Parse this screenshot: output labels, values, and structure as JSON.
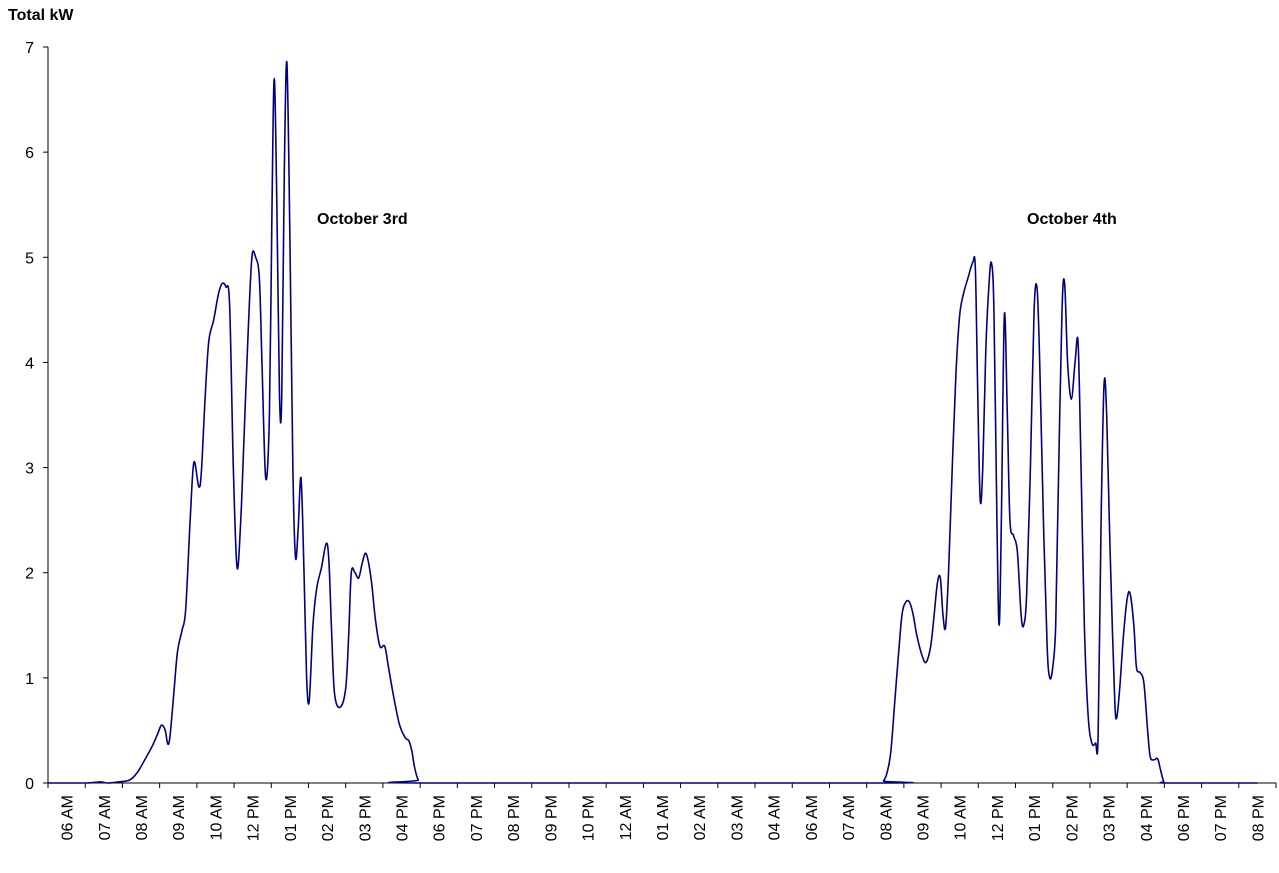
{
  "chart_data": {
    "type": "line",
    "ylabel": "Total kW",
    "xlabel": "",
    "title": "",
    "ylim": [
      0,
      7
    ],
    "yticks": [
      0,
      1,
      2,
      3,
      4,
      5,
      6,
      7
    ],
    "grid": false,
    "x_tick_labels": [
      "06 AM",
      "07 AM",
      "08 AM",
      "09 AM",
      "10 AM",
      "12 PM",
      "01 PM",
      "02 PM",
      "03 PM",
      "04 PM",
      "06 PM",
      "07 PM",
      "08 PM",
      "09 PM",
      "10 PM",
      "12 AM",
      "01 AM",
      "02 AM",
      "03 AM",
      "04 AM",
      "06 AM",
      "07 AM",
      "08 AM",
      "09 AM",
      "10 AM",
      "12 PM",
      "01 PM",
      "02 PM",
      "03 PM",
      "04 PM",
      "06 PM",
      "07 PM",
      "08 PM"
    ],
    "annotations": [
      {
        "text": "October 3rd"
      },
      {
        "text": "October 4th"
      }
    ],
    "series": [
      {
        "color": "#000080",
        "points": [
          [
            0,
            0
          ],
          [
            1.0,
            0
          ],
          [
            1.4,
            0.01
          ],
          [
            1.6,
            0
          ],
          [
            1.9,
            0.01
          ],
          [
            2.2,
            0.03
          ],
          [
            2.4,
            0.1
          ],
          [
            2.6,
            0.22
          ],
          [
            2.8,
            0.35
          ],
          [
            2.95,
            0.47
          ],
          [
            3.05,
            0.55
          ],
          [
            3.15,
            0.5
          ],
          [
            3.22,
            0.37
          ],
          [
            3.28,
            0.45
          ],
          [
            3.38,
            0.85
          ],
          [
            3.48,
            1.25
          ],
          [
            3.6,
            1.45
          ],
          [
            3.7,
            1.65
          ],
          [
            3.82,
            2.5
          ],
          [
            3.92,
            3.05
          ],
          [
            4.05,
            2.82
          ],
          [
            4.12,
            2.95
          ],
          [
            4.22,
            3.65
          ],
          [
            4.32,
            4.2
          ],
          [
            4.45,
            4.4
          ],
          [
            4.58,
            4.65
          ],
          [
            4.68,
            4.75
          ],
          [
            4.78,
            4.72
          ],
          [
            4.88,
            4.55
          ],
          [
            4.98,
            3.0
          ],
          [
            5.08,
            2.05
          ],
          [
            5.18,
            2.5
          ],
          [
            5.28,
            3.4
          ],
          [
            5.38,
            4.3
          ],
          [
            5.48,
            5.0
          ],
          [
            5.58,
            5.0
          ],
          [
            5.68,
            4.8
          ],
          [
            5.75,
            4.0
          ],
          [
            5.85,
            2.9
          ],
          [
            5.95,
            3.5
          ],
          [
            6.02,
            5.5
          ],
          [
            6.08,
            6.7
          ],
          [
            6.15,
            5.5
          ],
          [
            6.22,
            3.7
          ],
          [
            6.28,
            3.65
          ],
          [
            6.35,
            5.8
          ],
          [
            6.42,
            6.85
          ],
          [
            6.5,
            5.2
          ],
          [
            6.58,
            3.0
          ],
          [
            6.65,
            2.15
          ],
          [
            6.72,
            2.4
          ],
          [
            6.8,
            2.9
          ],
          [
            6.88,
            2.0
          ],
          [
            6.95,
            1.0
          ],
          [
            7.02,
            0.78
          ],
          [
            7.12,
            1.5
          ],
          [
            7.22,
            1.85
          ],
          [
            7.35,
            2.05
          ],
          [
            7.48,
            2.28
          ],
          [
            7.55,
            2.1
          ],
          [
            7.62,
            1.45
          ],
          [
            7.7,
            0.85
          ],
          [
            7.85,
            0.72
          ],
          [
            8.0,
            0.9
          ],
          [
            8.08,
            1.4
          ],
          [
            8.15,
            2.0
          ],
          [
            8.25,
            2.0
          ],
          [
            8.35,
            1.95
          ],
          [
            8.45,
            2.1
          ],
          [
            8.55,
            2.18
          ],
          [
            8.68,
            1.95
          ],
          [
            8.8,
            1.55
          ],
          [
            8.92,
            1.3
          ],
          [
            9.05,
            1.3
          ],
          [
            9.15,
            1.1
          ],
          [
            9.3,
            0.8
          ],
          [
            9.45,
            0.55
          ],
          [
            9.6,
            0.43
          ],
          [
            9.7,
            0.4
          ],
          [
            9.78,
            0.3
          ],
          [
            9.85,
            0.15
          ],
          [
            9.95,
            0.03
          ],
          [
            10.1,
            0
          ],
          [
            22.3,
            0
          ],
          [
            22.45,
            0.02
          ],
          [
            22.55,
            0.1
          ],
          [
            22.65,
            0.3
          ],
          [
            22.75,
            0.75
          ],
          [
            22.85,
            1.2
          ],
          [
            22.95,
            1.6
          ],
          [
            23.05,
            1.72
          ],
          [
            23.15,
            1.72
          ],
          [
            23.25,
            1.6
          ],
          [
            23.35,
            1.4
          ],
          [
            23.5,
            1.2
          ],
          [
            23.6,
            1.15
          ],
          [
            23.72,
            1.3
          ],
          [
            23.8,
            1.55
          ],
          [
            23.9,
            1.9
          ],
          [
            23.98,
            1.95
          ],
          [
            24.05,
            1.6
          ],
          [
            24.12,
            1.48
          ],
          [
            24.2,
            2.0
          ],
          [
            24.3,
            3.0
          ],
          [
            24.4,
            3.9
          ],
          [
            24.5,
            4.45
          ],
          [
            24.6,
            4.65
          ],
          [
            24.72,
            4.8
          ],
          [
            24.85,
            4.95
          ],
          [
            24.92,
            4.9
          ],
          [
            24.98,
            3.8
          ],
          [
            25.05,
            2.7
          ],
          [
            25.12,
            3.0
          ],
          [
            25.2,
            4.1
          ],
          [
            25.28,
            4.7
          ],
          [
            25.35,
            4.95
          ],
          [
            25.42,
            4.5
          ],
          [
            25.5,
            2.5
          ],
          [
            25.56,
            1.5
          ],
          [
            25.62,
            2.5
          ],
          [
            25.7,
            4.45
          ],
          [
            25.78,
            3.5
          ],
          [
            25.85,
            2.5
          ],
          [
            25.95,
            2.35
          ],
          [
            26.05,
            2.2
          ],
          [
            26.15,
            1.6
          ],
          [
            26.22,
            1.5
          ],
          [
            26.3,
            1.8
          ],
          [
            26.4,
            3.0
          ],
          [
            26.5,
            4.5
          ],
          [
            26.58,
            4.7
          ],
          [
            26.65,
            4.0
          ],
          [
            26.75,
            2.5
          ],
          [
            26.85,
            1.3
          ],
          [
            26.92,
            1.0
          ],
          [
            27.0,
            1.1
          ],
          [
            27.08,
            1.5
          ],
          [
            27.15,
            2.8
          ],
          [
            27.25,
            4.5
          ],
          [
            27.32,
            4.75
          ],
          [
            27.4,
            4.0
          ],
          [
            27.5,
            3.65
          ],
          [
            27.6,
            4.0
          ],
          [
            27.68,
            4.2
          ],
          [
            27.75,
            3.2
          ],
          [
            27.85,
            1.5
          ],
          [
            27.95,
            0.65
          ],
          [
            28.05,
            0.38
          ],
          [
            28.15,
            0.38
          ],
          [
            28.22,
            0.45
          ],
          [
            28.3,
            2.5
          ],
          [
            28.38,
            3.8
          ],
          [
            28.45,
            3.5
          ],
          [
            28.52,
            2.5
          ],
          [
            28.6,
            1.5
          ],
          [
            28.67,
            0.75
          ],
          [
            28.72,
            0.62
          ],
          [
            28.8,
            0.9
          ],
          [
            28.9,
            1.4
          ],
          [
            29.0,
            1.75
          ],
          [
            29.08,
            1.8
          ],
          [
            29.18,
            1.5
          ],
          [
            29.25,
            1.1
          ],
          [
            29.35,
            1.05
          ],
          [
            29.45,
            0.95
          ],
          [
            29.55,
            0.5
          ],
          [
            29.62,
            0.25
          ],
          [
            29.72,
            0.22
          ],
          [
            29.82,
            0.23
          ],
          [
            29.9,
            0.12
          ],
          [
            29.98,
            0.02
          ],
          [
            30.1,
            0
          ],
          [
            32.5,
            0
          ]
        ]
      }
    ]
  }
}
